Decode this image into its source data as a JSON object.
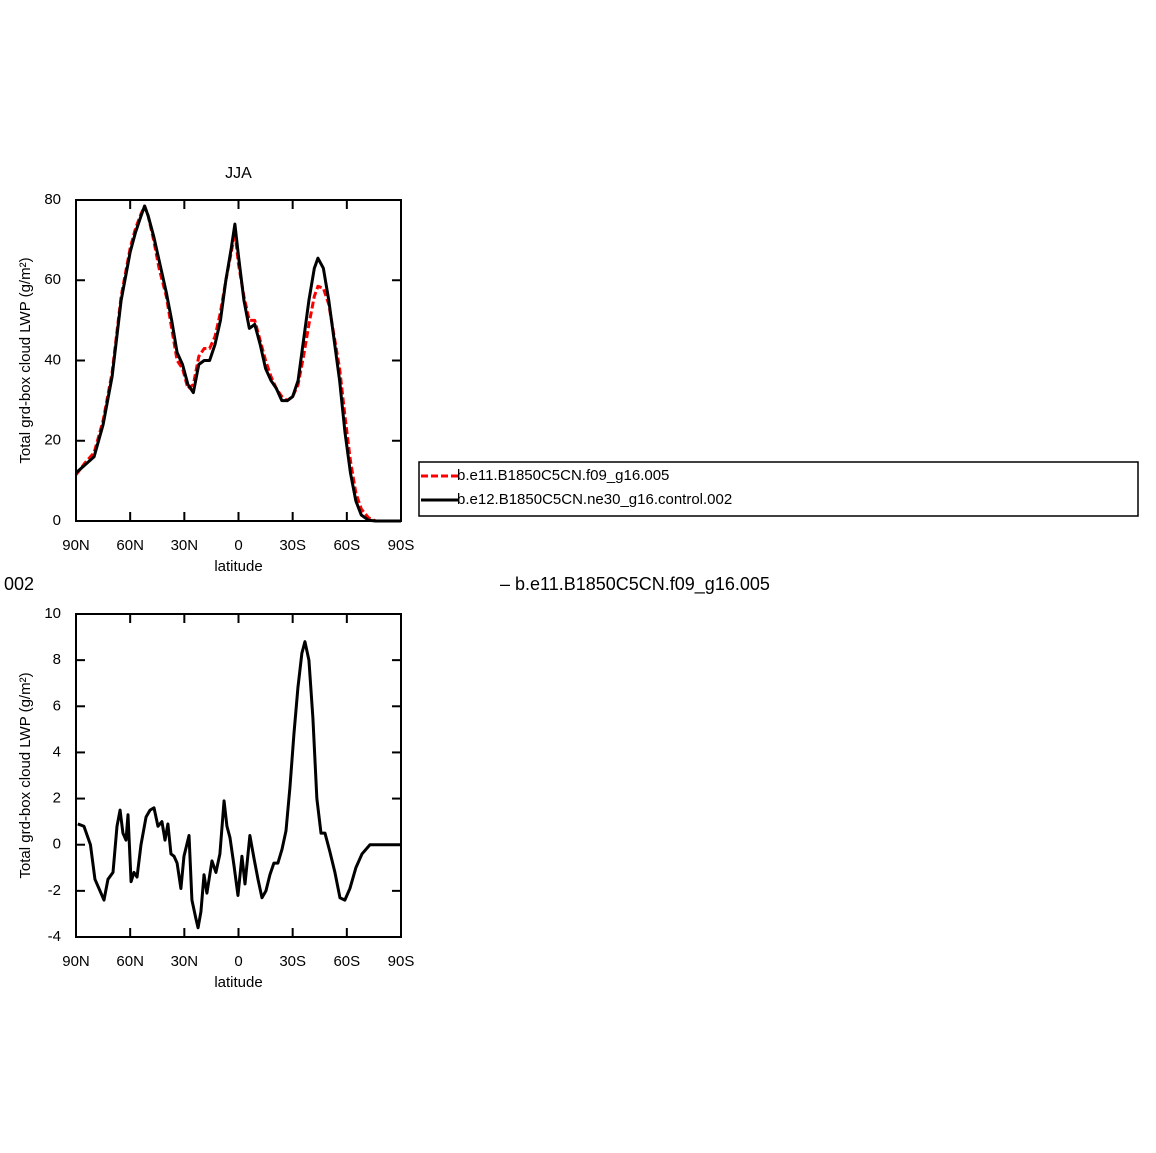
{
  "chart_data": [
    {
      "type": "line",
      "title": "JJA",
      "x_label": "latitude",
      "y_label": "Total grd-box cloud LWP (g/m²)",
      "x": [
        90,
        85,
        80,
        75,
        70,
        65,
        60,
        57,
        54,
        52,
        50,
        47,
        44,
        40,
        37,
        34,
        31,
        28,
        25,
        22,
        19,
        16,
        13,
        10,
        7,
        4,
        2,
        0,
        -3,
        -6,
        -9,
        -12,
        -15,
        -18,
        -21,
        -24,
        -27,
        -30,
        -33,
        -36,
        -39,
        -42,
        -44,
        -47,
        -50,
        -53,
        -56,
        -59,
        -62,
        -65,
        -68,
        -72,
        -76,
        -80,
        -85,
        -90
      ],
      "series": [
        {
          "name": "b.e11.B1850C5CN.f09_g16.005",
          "color": "#ff0000",
          "dashed": true,
          "values": [
            11.5,
            14.5,
            17,
            25,
            37,
            56,
            68,
            73,
            76.5,
            78.5,
            76,
            70,
            63,
            56,
            48,
            40,
            38,
            33,
            34,
            41,
            43,
            43,
            46,
            52,
            60,
            67,
            72,
            64,
            56,
            50,
            50,
            45,
            40,
            36,
            33,
            31,
            30,
            31,
            34,
            41,
            49,
            56,
            58.5,
            58,
            54,
            46,
            38,
            26,
            15,
            7,
            3,
            0.8,
            0,
            0,
            0,
            0
          ]
        },
        {
          "name": "b.e12.B1850C5CN.ne30_g16.control.002",
          "color": "#000000",
          "dashed": false,
          "values": [
            12,
            14,
            16,
            24,
            36,
            55,
            67,
            72,
            76,
            78.5,
            76,
            71,
            65,
            57,
            50,
            42,
            39,
            34,
            32,
            39,
            40,
            40,
            44,
            50,
            60,
            68,
            74,
            66,
            55,
            48,
            49,
            44,
            38,
            35,
            33,
            30,
            30,
            31,
            35,
            45,
            55,
            63,
            65.5,
            63,
            55,
            45,
            35,
            22,
            12,
            5,
            1.5,
            0.2,
            0,
            0,
            0,
            0
          ]
        }
      ],
      "xlim": [
        90,
        -90
      ],
      "xticks": [
        {
          "value": 90,
          "label": "90N"
        },
        {
          "value": 60,
          "label": "60N"
        },
        {
          "value": 30,
          "label": "30N"
        },
        0,
        {
          "value": -30,
          "label": "30S"
        },
        {
          "value": -60,
          "label": "60S"
        },
        {
          "value": -90,
          "label": "90S"
        }
      ],
      "ylim": [
        0,
        80
      ],
      "yticks": [
        0,
        20,
        40,
        60,
        80
      ],
      "legend": "right"
    },
    {
      "type": "line",
      "annotations": [
        "002",
        "– b.e11.B1850C5CN.f09_g16.005"
      ],
      "x_label": "latitude",
      "y_label": "Total grd-box cloud LWP (g/m²)",
      "x": [
        89,
        85.6,
        82,
        79.5,
        76.7,
        74.5,
        72.3,
        69.5,
        67.3,
        65.6,
        64,
        62.3,
        61.2,
        59.5,
        57.9,
        56.2,
        54,
        51.2,
        49,
        46.8,
        44.6,
        42.4,
        40.7,
        39.1,
        37.4,
        35.7,
        34,
        31.9,
        30.2,
        27.4,
        25.8,
        23.6,
        22.4,
        20.8,
        19.1,
        17.5,
        14.7,
        12.5,
        10.3,
        8,
        6.4,
        4.7,
        2.5,
        0.3,
        -1.9,
        -3.6,
        -6.3,
        -8.6,
        -10.8,
        -13,
        -15.2,
        -17.4,
        -19.6,
        -21.8,
        -24.1,
        -26.3,
        -28.5,
        -30.7,
        -32.9,
        -35.1,
        -36.8,
        -39,
        -41.2,
        -43.4,
        -45.7,
        -47.9,
        -50.6,
        -53.4,
        -56.2,
        -58.9,
        -61.7,
        -65,
        -68.4,
        -72.8,
        -78.3,
        -83.9,
        -90
      ],
      "series": [
        {
          "color": "#000000",
          "dashed": false,
          "values": [
            0.9,
            0.8,
            0,
            -1.5,
            -2.0,
            -2.4,
            -1.5,
            -1.2,
            0.8,
            1.5,
            0.5,
            0.2,
            1.3,
            -1.6,
            -1.2,
            -1.4,
            0,
            1.2,
            1.5,
            1.6,
            0.8,
            1.0,
            0.2,
            0.9,
            -0.4,
            -0.5,
            -0.8,
            -1.9,
            -0.5,
            0.4,
            -2.4,
            -3.2,
            -3.6,
            -2.9,
            -1.3,
            -2.1,
            -0.7,
            -1.2,
            -0.4,
            1.9,
            0.8,
            0.3,
            -0.9,
            -2.2,
            -0.5,
            -1.7,
            0.4,
            -0.6,
            -1.5,
            -2.3,
            -2.0,
            -1.3,
            -0.8,
            -0.8,
            -0.2,
            0.6,
            2.5,
            4.8,
            6.8,
            8.3,
            8.8,
            8.0,
            5.5,
            2.0,
            0.5,
            0.5,
            -0.3,
            -1.2,
            -2.3,
            -2.4,
            -1.9,
            -1.0,
            -0.4,
            0,
            0,
            0,
            0
          ]
        }
      ],
      "xlim": [
        90,
        -90
      ],
      "xticks": [
        {
          "value": 90,
          "label": "90N"
        },
        {
          "value": 60,
          "label": "60N"
        },
        {
          "value": 30,
          "label": "30N"
        },
        0,
        {
          "value": -30,
          "label": "30S"
        },
        {
          "value": -60,
          "label": "60S"
        },
        {
          "value": -90,
          "label": "90S"
        }
      ],
      "ylim": [
        -4,
        10
      ],
      "yticks": [
        -4,
        -2,
        0,
        2,
        4,
        6,
        8,
        10
      ]
    }
  ]
}
